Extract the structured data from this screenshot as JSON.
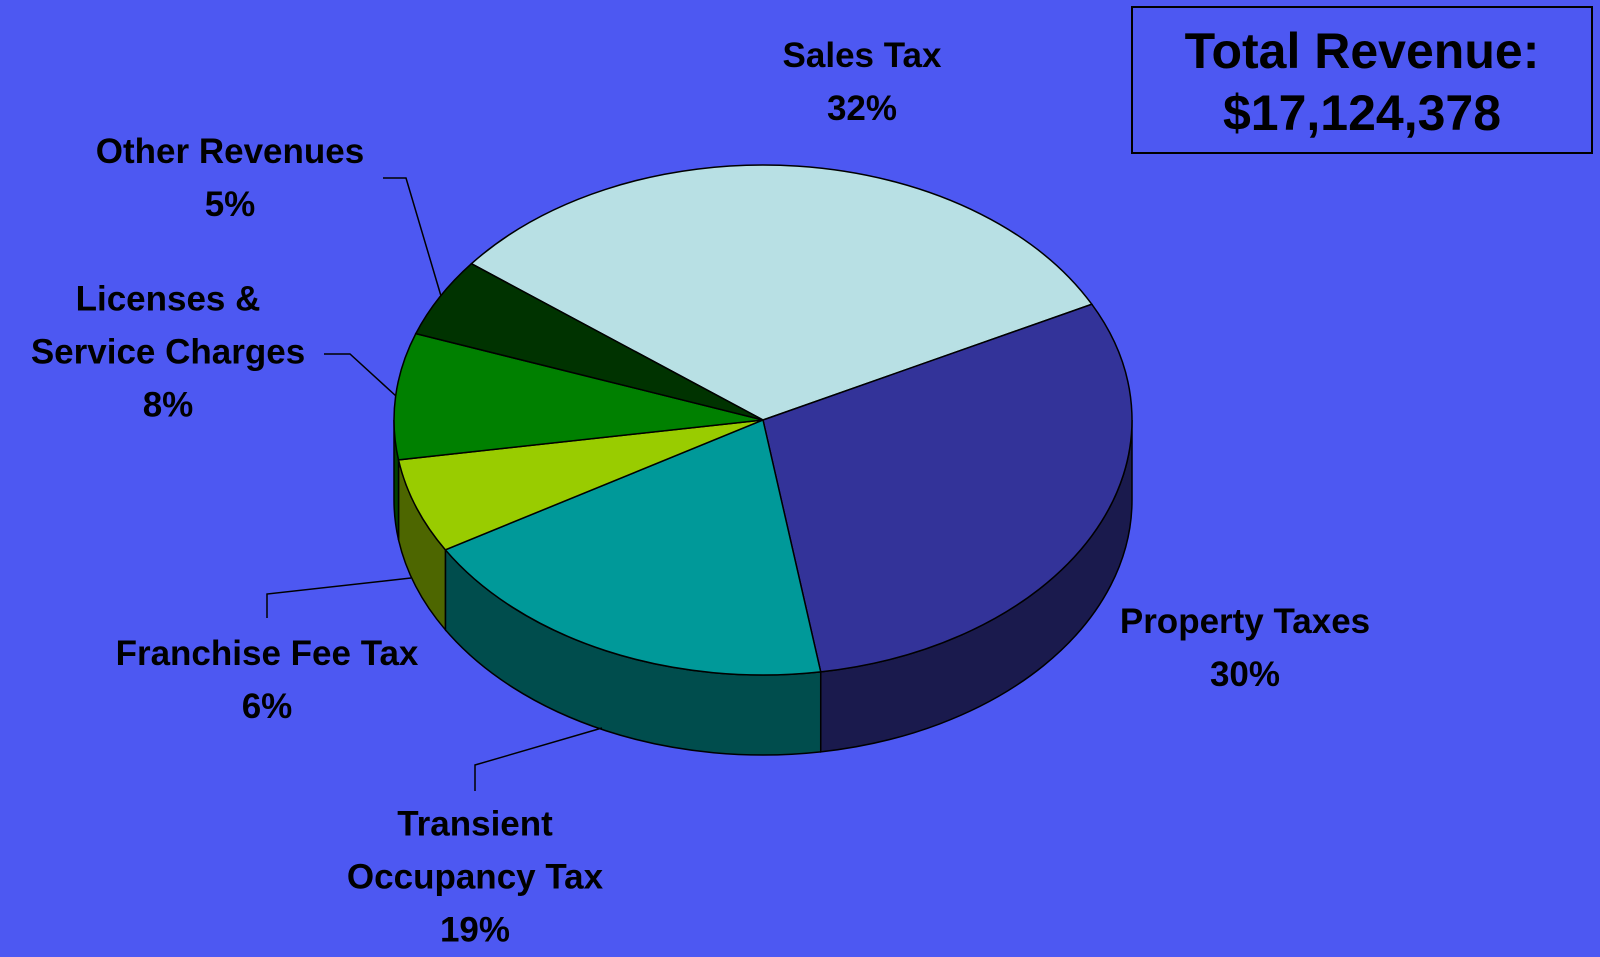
{
  "chart_data": {
    "type": "pie",
    "categories": [
      "Sales Tax",
      "Property Taxes",
      "Transient\nOccupancy Tax",
      "Franchise Fee Tax",
      "Licenses &\nService Charges",
      "Other Revenues"
    ],
    "values": [
      32,
      30,
      19,
      6,
      8,
      5
    ],
    "value_labels": [
      "32%",
      "30%",
      "19%",
      "6%",
      "8%",
      "5%"
    ],
    "colors": [
      "#b8e0e4",
      "#333399",
      "#009999",
      "#99cc00",
      "#008000",
      "#003300"
    ],
    "annotations": [
      "Total Revenue:",
      "$17,124,378"
    ]
  }
}
